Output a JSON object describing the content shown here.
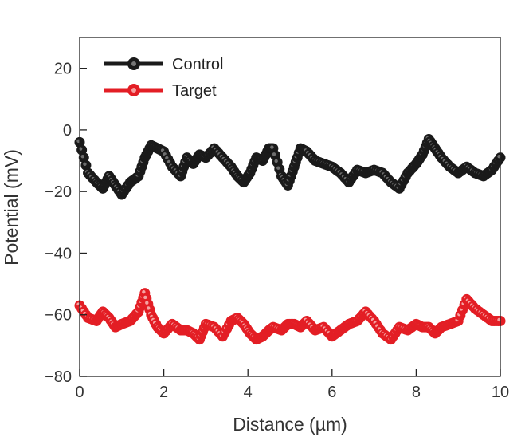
{
  "chart_data": {
    "type": "scatter",
    "xlabel": "Distance (µm)",
    "ylabel": "Potential (mV)",
    "xlim": [
      0,
      10
    ],
    "ylim": [
      -80,
      30
    ],
    "xticks": [
      "0",
      "2",
      "4",
      "6",
      "8",
      "10"
    ],
    "yticks": [
      "20",
      "0",
      "−20",
      "−40",
      "−60",
      "−80"
    ],
    "grid": false,
    "legend_position": "top-left",
    "series": [
      {
        "name": "Control",
        "color": "#1a1a1a",
        "x": [
          0.0,
          0.2,
          0.4,
          0.55,
          0.7,
          0.85,
          1.0,
          1.2,
          1.4,
          1.55,
          1.7,
          1.85,
          2.0,
          2.2,
          2.4,
          2.55,
          2.7,
          2.85,
          3.0,
          3.2,
          3.4,
          3.6,
          3.75,
          3.9,
          4.05,
          4.2,
          4.35,
          4.5,
          4.6,
          4.8,
          4.95,
          5.1,
          5.25,
          5.4,
          5.6,
          5.8,
          6.0,
          6.2,
          6.4,
          6.6,
          6.8,
          7.0,
          7.2,
          7.4,
          7.6,
          7.8,
          8.0,
          8.15,
          8.3,
          8.45,
          8.6,
          8.8,
          9.0,
          9.2,
          9.4,
          9.6,
          9.8,
          10.0
        ],
        "y": [
          -4,
          -14,
          -17,
          -19,
          -15,
          -18,
          -21,
          -17,
          -15,
          -9,
          -5,
          -6,
          -7,
          -12,
          -15,
          -9,
          -11,
          -8,
          -9,
          -6,
          -9,
          -12,
          -15,
          -17,
          -14,
          -9,
          -10,
          -6,
          -6,
          -15,
          -18,
          -12,
          -6,
          -7,
          -10,
          -11,
          -12,
          -14,
          -17,
          -13,
          -14,
          -13,
          -14,
          -17,
          -19,
          -14,
          -11,
          -8,
          -3,
          -6,
          -9,
          -12,
          -14,
          -12,
          -14,
          -15,
          -13,
          -9
        ]
      },
      {
        "name": "Target",
        "color": "#e31e25",
        "x": [
          0.0,
          0.2,
          0.4,
          0.55,
          0.7,
          0.85,
          1.0,
          1.2,
          1.4,
          1.55,
          1.7,
          1.85,
          2.0,
          2.2,
          2.4,
          2.55,
          2.7,
          2.85,
          3.0,
          3.2,
          3.4,
          3.6,
          3.75,
          3.9,
          4.05,
          4.2,
          4.35,
          4.5,
          4.6,
          4.8,
          4.95,
          5.1,
          5.25,
          5.4,
          5.6,
          5.8,
          6.0,
          6.2,
          6.4,
          6.6,
          6.8,
          7.0,
          7.2,
          7.4,
          7.6,
          7.8,
          8.0,
          8.15,
          8.3,
          8.45,
          8.6,
          8.8,
          9.0,
          9.2,
          9.4,
          9.6,
          9.8,
          10.0
        ],
        "y": [
          -57,
          -61,
          -62,
          -59,
          -61,
          -64,
          -63,
          -62,
          -59,
          -53,
          -60,
          -64,
          -66,
          -63,
          -65,
          -65,
          -66,
          -68,
          -63,
          -64,
          -67,
          -62,
          -61,
          -63,
          -66,
          -68,
          -67,
          -65,
          -64,
          -65,
          -63,
          -63,
          -64,
          -62,
          -65,
          -64,
          -67,
          -65,
          -63,
          -62,
          -59,
          -62,
          -66,
          -68,
          -64,
          -65,
          -63,
          -64,
          -64,
          -66,
          -64,
          -63,
          -62,
          -55,
          -58,
          -60,
          -62,
          -62
        ]
      }
    ]
  }
}
